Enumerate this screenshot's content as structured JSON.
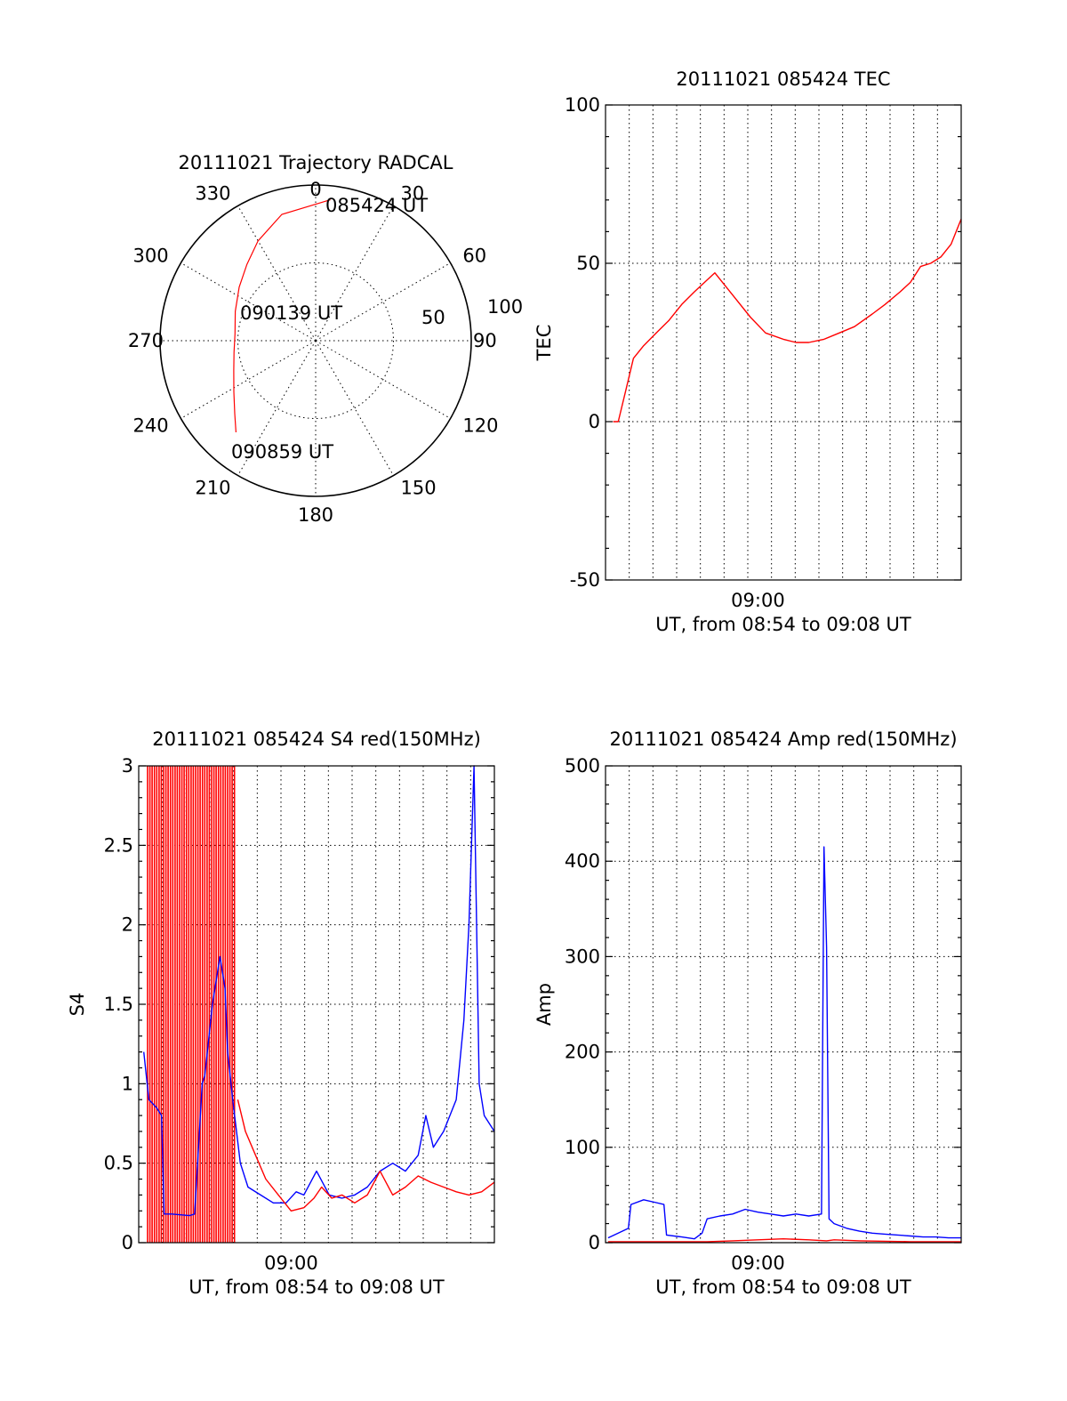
{
  "chart_data": [
    {
      "type": "polar",
      "title": "20111021 Trajectory RADCAL",
      "angle_labels": [
        "0",
        "30",
        "60",
        "90",
        "120",
        "150",
        "180",
        "210",
        "240",
        "270",
        "300",
        "330"
      ],
      "radius_labels": [
        "50",
        "100"
      ],
      "rlim": [
        0,
        100
      ],
      "grid": true,
      "annotations": [
        "085424 UT",
        "090139 UT",
        "090859 UT"
      ],
      "trajectory": {
        "color": "#ff0000",
        "points": [
          [
            6,
            91
          ],
          [
            345,
            84
          ],
          [
            330,
            74
          ],
          [
            318,
            66
          ],
          [
            305,
            60
          ],
          [
            290,
            55
          ],
          [
            275,
            52
          ],
          [
            262,
            53
          ],
          [
            250,
            56
          ],
          [
            238,
            62
          ],
          [
            228,
            70
          ],
          [
            221,
            78
          ]
        ]
      }
    },
    {
      "type": "line",
      "title": "20111021 085424 TEC",
      "ylabel": "TEC",
      "xlabel": "UT, from 08:54 to 09:08 UT",
      "xtick_labels": [
        "09:00"
      ],
      "xticks": [
        6
      ],
      "xlim": [
        0,
        14
      ],
      "ylim": [
        -50,
        100
      ],
      "yticks": [
        -50,
        0,
        50,
        100
      ],
      "grid": true,
      "series": [
        {
          "color": "#ff0000",
          "x": [
            0.3,
            0.5,
            0.8,
            1.1,
            1.5,
            2.0,
            2.5,
            3.0,
            3.5,
            3.9,
            4.3,
            5.0,
            5.7,
            6.3,
            7.0,
            7.5,
            8.0,
            8.6,
            9.2,
            9.8,
            10.5,
            11.0,
            11.6,
            12.0,
            12.4,
            12.8,
            13.2,
            13.6,
            14.0
          ],
          "y": [
            0,
            0,
            10,
            20,
            24,
            28,
            32,
            37,
            41,
            44,
            47,
            40,
            33,
            28,
            26,
            25,
            25,
            26,
            28,
            30,
            34,
            37,
            41,
            44,
            49,
            50,
            52,
            56,
            64
          ]
        }
      ]
    },
    {
      "type": "line",
      "title": "20111021 085424 S4 red(150MHz)",
      "ylabel": "S4",
      "xlabel": "UT, from 08:54 to 09:08 UT",
      "xtick_labels": [
        "09:00"
      ],
      "xticks": [
        6
      ],
      "xlim": [
        0,
        14
      ],
      "ylim": [
        0,
        3
      ],
      "yticks": [
        "0",
        "0.5",
        "1",
        "1.5",
        "2",
        "2.5",
        "3"
      ],
      "grid": true,
      "series": [
        {
          "color": "#0000ff",
          "x": [
            0.2,
            0.4,
            0.7,
            0.9,
            1.0,
            1.3,
            2.0,
            2.2,
            2.5,
            2.6,
            2.9,
            3.2,
            3.4,
            3.5,
            3.7,
            4.0,
            4.3,
            4.8,
            5.3,
            5.8,
            6.2,
            6.5,
            7.0,
            7.5,
            8.0,
            8.5,
            9.0,
            9.5,
            10.0,
            10.5,
            11.0,
            11.3,
            11.6,
            12.0,
            12.5,
            12.8,
            13.0,
            13.2,
            13.4,
            13.6,
            14.0
          ],
          "y": [
            1.2,
            0.9,
            0.85,
            0.8,
            0.18,
            0.18,
            0.17,
            0.18,
            1.0,
            1.05,
            1.5,
            1.8,
            1.6,
            1.2,
            0.9,
            0.5,
            0.35,
            0.3,
            0.25,
            0.25,
            0.32,
            0.3,
            0.45,
            0.3,
            0.28,
            0.3,
            0.35,
            0.45,
            0.5,
            0.45,
            0.55,
            0.8,
            0.6,
            0.7,
            0.9,
            1.4,
            2.0,
            3.0,
            1.0,
            0.8,
            0.7
          ]
        },
        {
          "color": "#ff0000",
          "x": [
            3.9,
            4.2,
            4.6,
            5.0,
            5.5,
            6.0,
            6.5,
            6.9,
            7.2,
            7.6,
            8.0,
            8.5,
            9.0,
            9.5,
            10.0,
            10.5,
            11.0,
            11.5,
            12.0,
            12.5,
            13.0,
            13.5,
            14.0
          ],
          "y": [
            0.9,
            0.7,
            0.55,
            0.4,
            0.3,
            0.2,
            0.22,
            0.28,
            0.35,
            0.28,
            0.3,
            0.25,
            0.3,
            0.45,
            0.3,
            0.35,
            0.42,
            0.38,
            0.35,
            0.32,
            0.3,
            0.32,
            0.38
          ]
        }
      ]
    },
    {
      "type": "line",
      "title": "20111021 085424 Amp red(150MHz)",
      "ylabel": "Amp",
      "xlabel": "UT, from 08:54 to 09:08 UT",
      "xtick_labels": [
        "09:00"
      ],
      "xticks": [
        6
      ],
      "xlim": [
        0,
        14
      ],
      "ylim": [
        0,
        500
      ],
      "yticks": [
        0,
        100,
        200,
        300,
        400,
        500
      ],
      "grid": true,
      "series": [
        {
          "color": "#0000ff",
          "x": [
            0.1,
            0.5,
            0.9,
            1.0,
            1.5,
            2.0,
            2.3,
            2.4,
            3.0,
            3.5,
            3.8,
            4.0,
            4.5,
            5.0,
            5.5,
            6.0,
            6.5,
            7.0,
            7.5,
            8.0,
            8.5,
            8.6,
            8.7,
            8.8,
            9.0,
            9.5,
            10.0,
            10.5,
            11.0,
            11.5,
            12.0,
            12.5,
            13.0,
            13.5,
            14.0
          ],
          "y": [
            5,
            10,
            15,
            40,
            45,
            42,
            40,
            8,
            6,
            4,
            10,
            25,
            28,
            30,
            35,
            32,
            30,
            28,
            30,
            28,
            30,
            415,
            310,
            25,
            20,
            15,
            12,
            10,
            9,
            8,
            7,
            6,
            6,
            5,
            5
          ]
        },
        {
          "color": "#ff0000",
          "x": [
            0.1,
            2.0,
            4.0,
            5.0,
            6.0,
            7.0,
            8.0,
            8.7,
            9.0,
            10.0,
            12.0,
            14.0
          ],
          "y": [
            1,
            1,
            1,
            2,
            3,
            4,
            3,
            2,
            3,
            2,
            1,
            1
          ]
        }
      ]
    }
  ]
}
